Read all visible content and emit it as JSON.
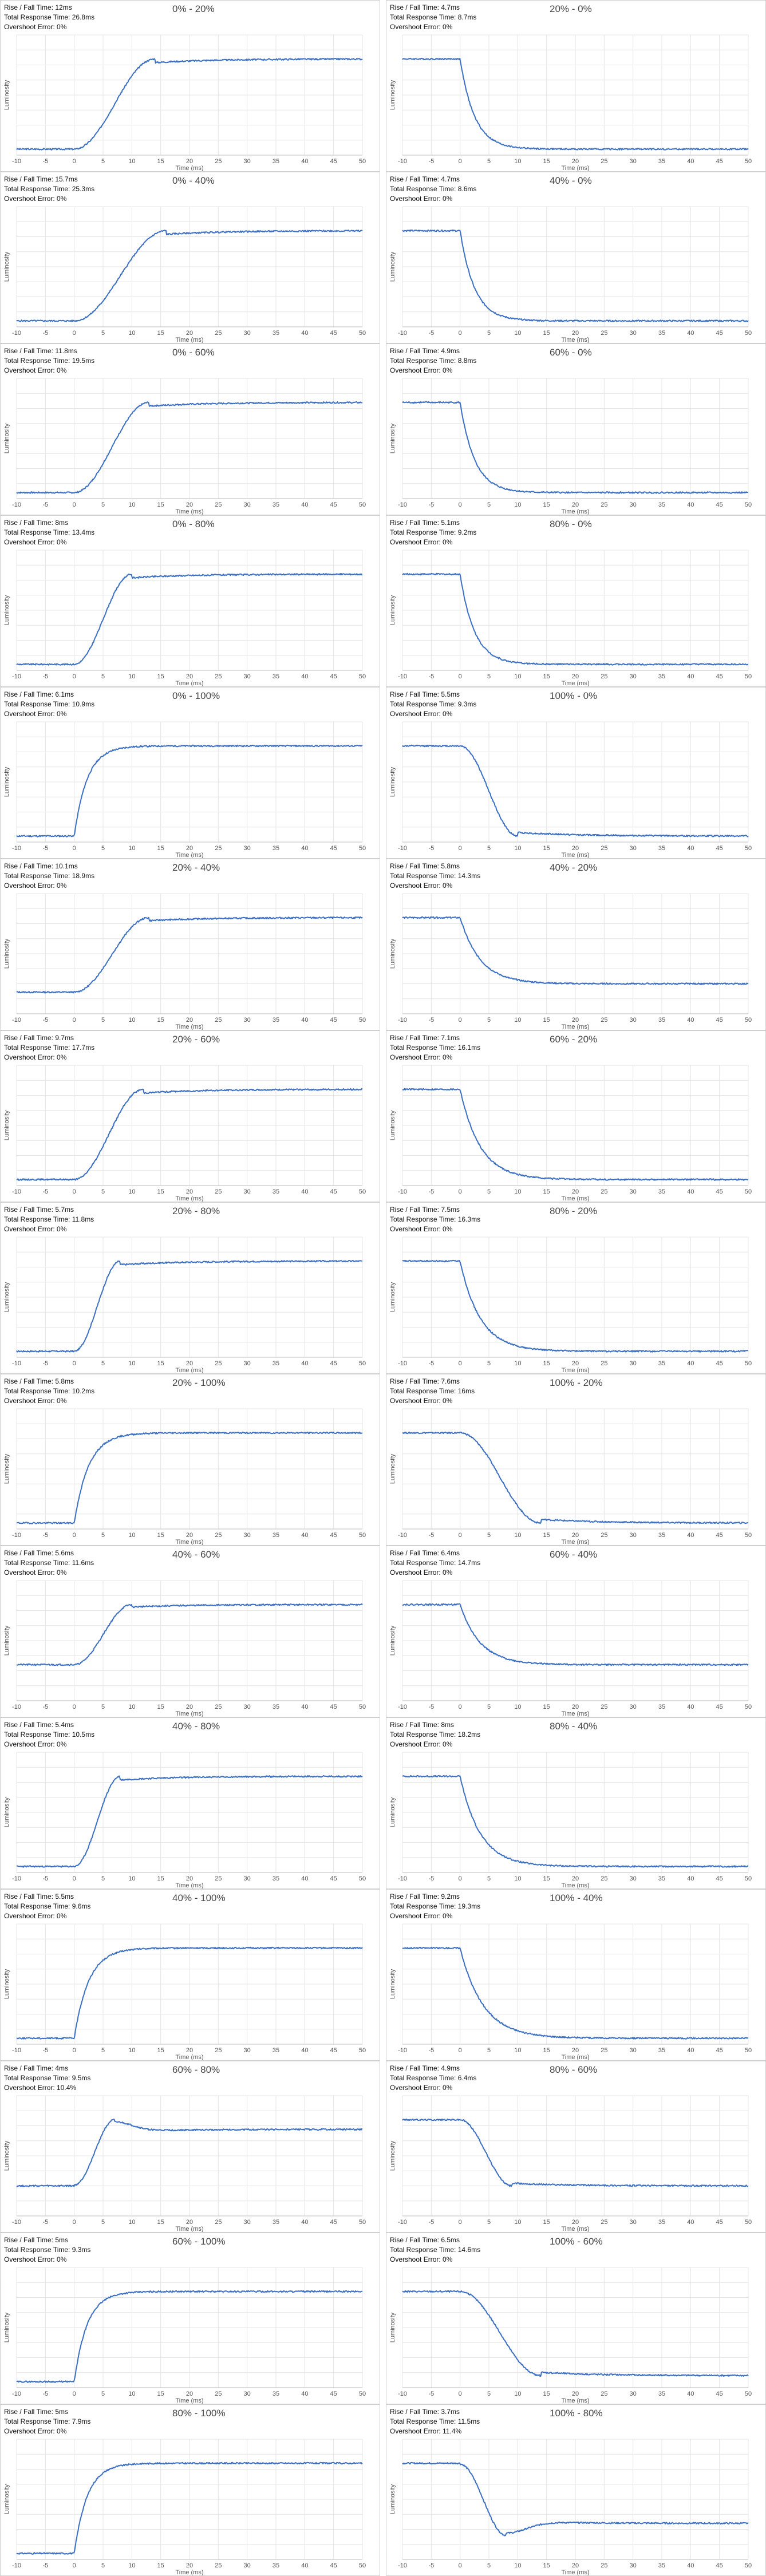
{
  "chart_data": [
    {
      "type": "line",
      "title": "0% - 20%",
      "lines": [
        "Rise / Fall Time: 12ms",
        "Total Response Time: 26.8ms",
        "Overshoot Error: 0%"
      ],
      "xlabel": "Time (ms)",
      "ylabel": "Luminosity",
      "xlim": [
        -10,
        50
      ],
      "ylim": [
        0,
        1
      ],
      "direction": "rise",
      "t_end": 14,
      "shape": "smooth",
      "start": 0.05,
      "end": 0.8,
      "overshoot": 0
    },
    {
      "type": "line",
      "title": "20% - 0%",
      "lines": [
        "Rise / Fall Time: 4.7ms",
        "Total Response Time: 8.7ms",
        "Overshoot Error: 0%"
      ],
      "xlabel": "Time (ms)",
      "ylabel": "Luminosity",
      "xlim": [
        -10,
        50
      ],
      "ylim": [
        0,
        1
      ],
      "direction": "fall",
      "t_end": 10,
      "shape": "exp",
      "start": 0.8,
      "end": 0.05,
      "overshoot": 0
    },
    {
      "type": "line",
      "title": "0% - 40%",
      "lines": [
        "Rise / Fall Time: 15.7ms",
        "Total Response Time: 25.3ms",
        "Overshoot Error: 0%"
      ],
      "xlabel": "Time (ms)",
      "ylabel": "Luminosity",
      "xlim": [
        -10,
        50
      ],
      "ylim": [
        0,
        1
      ],
      "direction": "rise",
      "t_end": 16,
      "shape": "smooth",
      "start": 0.05,
      "end": 0.8,
      "overshoot": 0
    },
    {
      "type": "line",
      "title": "40% - 0%",
      "lines": [
        "Rise / Fall Time: 4.7ms",
        "Total Response Time: 8.6ms",
        "Overshoot Error: 0%"
      ],
      "xlabel": "Time (ms)",
      "ylabel": "Luminosity",
      "xlim": [
        -10,
        50
      ],
      "ylim": [
        0,
        1
      ],
      "direction": "fall",
      "t_end": 10,
      "shape": "exp",
      "start": 0.8,
      "end": 0.05,
      "overshoot": 0
    },
    {
      "type": "line",
      "title": "0% - 60%",
      "lines": [
        "Rise / Fall Time: 11.8ms",
        "Total Response Time: 19.5ms",
        "Overshoot Error: 0%"
      ],
      "xlabel": "Time (ms)",
      "ylabel": "Luminosity",
      "xlim": [
        -10,
        50
      ],
      "ylim": [
        0,
        1
      ],
      "direction": "rise",
      "t_end": 13,
      "shape": "smooth",
      "start": 0.05,
      "end": 0.8,
      "overshoot": 0
    },
    {
      "type": "line",
      "title": "60% - 0%",
      "lines": [
        "Rise / Fall Time: 4.9ms",
        "Total Response Time: 8.8ms",
        "Overshoot Error: 0%"
      ],
      "xlabel": "Time (ms)",
      "ylabel": "Luminosity",
      "xlim": [
        -10,
        50
      ],
      "ylim": [
        0,
        1
      ],
      "direction": "fall",
      "t_end": 10,
      "shape": "exp",
      "start": 0.8,
      "end": 0.05,
      "overshoot": 0
    },
    {
      "type": "line",
      "title": "0% - 80%",
      "lines": [
        "Rise / Fall Time: 8ms",
        "Total Response Time: 13.4ms",
        "Overshoot Error: 0%"
      ],
      "xlabel": "Time (ms)",
      "ylabel": "Luminosity",
      "xlim": [
        -10,
        50
      ],
      "ylim": [
        0,
        1
      ],
      "direction": "rise",
      "t_end": 10,
      "shape": "smooth",
      "start": 0.05,
      "end": 0.8,
      "overshoot": 0
    },
    {
      "type": "line",
      "title": "80% - 0%",
      "lines": [
        "Rise / Fall Time: 5.1ms",
        "Total Response Time: 9.2ms",
        "Overshoot Error: 0%"
      ],
      "xlabel": "Time (ms)",
      "ylabel": "Luminosity",
      "xlim": [
        -10,
        50
      ],
      "ylim": [
        0,
        1
      ],
      "direction": "fall",
      "t_end": 10,
      "shape": "exp",
      "start": 0.8,
      "end": 0.05,
      "overshoot": 0
    },
    {
      "type": "line",
      "title": "0% - 100%",
      "lines": [
        "Rise / Fall Time: 6.1ms",
        "Total Response Time: 10.9ms",
        "Overshoot Error: 0%"
      ],
      "xlabel": "Time (ms)",
      "ylabel": "Luminosity",
      "xlim": [
        -10,
        50
      ],
      "ylim": [
        0,
        1
      ],
      "direction": "rise",
      "t_end": 9,
      "shape": "exp",
      "start": 0.05,
      "end": 0.8,
      "overshoot": 0
    },
    {
      "type": "line",
      "title": "100% - 0%",
      "lines": [
        "Rise / Fall Time: 5.5ms",
        "Total Response Time: 9.3ms",
        "Overshoot Error: 0%"
      ],
      "xlabel": "Time (ms)",
      "ylabel": "Luminosity",
      "xlim": [
        -10,
        50
      ],
      "ylim": [
        0,
        1
      ],
      "direction": "fall",
      "t_end": 10,
      "shape": "smooth",
      "start": 0.8,
      "end": 0.05,
      "overshoot": 0
    },
    {
      "type": "line",
      "title": "20% - 40%",
      "lines": [
        "Rise / Fall Time: 10.1ms",
        "Total Response Time: 18.9ms",
        "Overshoot Error: 0%"
      ],
      "xlabel": "Time (ms)",
      "ylabel": "Luminosity",
      "xlim": [
        -10,
        50
      ],
      "ylim": [
        0,
        1
      ],
      "direction": "rise",
      "t_end": 13,
      "shape": "smooth",
      "start": 0.18,
      "end": 0.8,
      "overshoot": 0
    },
    {
      "type": "line",
      "title": "40% - 20%",
      "lines": [
        "Rise / Fall Time: 5.8ms",
        "Total Response Time: 14.3ms",
        "Overshoot Error: 0%"
      ],
      "xlabel": "Time (ms)",
      "ylabel": "Luminosity",
      "xlim": [
        -10,
        50
      ],
      "ylim": [
        0,
        1
      ],
      "direction": "fall",
      "t_end": 14,
      "shape": "exp",
      "start": 0.8,
      "end": 0.25,
      "overshoot": 0
    },
    {
      "type": "line",
      "title": "20% - 60%",
      "lines": [
        "Rise / Fall Time: 9.7ms",
        "Total Response Time: 17.7ms",
        "Overshoot Error: 0%"
      ],
      "xlabel": "Time (ms)",
      "ylabel": "Luminosity",
      "xlim": [
        -10,
        50
      ],
      "ylim": [
        0,
        1
      ],
      "direction": "rise",
      "t_end": 12,
      "shape": "smooth",
      "start": 0.05,
      "end": 0.8,
      "overshoot": 0
    },
    {
      "type": "line",
      "title": "60% - 20%",
      "lines": [
        "Rise / Fall Time: 7.1ms",
        "Total Response Time: 16.1ms",
        "Overshoot Error: 0%"
      ],
      "xlabel": "Time (ms)",
      "ylabel": "Luminosity",
      "xlim": [
        -10,
        50
      ],
      "ylim": [
        0,
        1
      ],
      "direction": "fall",
      "t_end": 14,
      "shape": "exp",
      "start": 0.8,
      "end": 0.05,
      "overshoot": 0
    },
    {
      "type": "line",
      "title": "20% - 80%",
      "lines": [
        "Rise / Fall Time: 5.7ms",
        "Total Response Time: 11.8ms",
        "Overshoot Error: 0%"
      ],
      "xlabel": "Time (ms)",
      "ylabel": "Luminosity",
      "xlim": [
        -10,
        50
      ],
      "ylim": [
        0,
        1
      ],
      "direction": "rise",
      "t_end": 8,
      "shape": "smooth",
      "start": 0.05,
      "end": 0.8,
      "overshoot": 0
    },
    {
      "type": "line",
      "title": "80% - 20%",
      "lines": [
        "Rise / Fall Time: 7.5ms",
        "Total Response Time: 16.3ms",
        "Overshoot Error: 0%"
      ],
      "xlabel": "Time (ms)",
      "ylabel": "Luminosity",
      "xlim": [
        -10,
        50
      ],
      "ylim": [
        0,
        1
      ],
      "direction": "fall",
      "t_end": 14,
      "shape": "exp",
      "start": 0.8,
      "end": 0.05,
      "overshoot": 0
    },
    {
      "type": "line",
      "title": "20% - 100%",
      "lines": [
        "Rise / Fall Time: 5.8ms",
        "Total Response Time: 10.2ms",
        "Overshoot Error: 0%"
      ],
      "xlabel": "Time (ms)",
      "ylabel": "Luminosity",
      "xlim": [
        -10,
        50
      ],
      "ylim": [
        0,
        1
      ],
      "direction": "rise",
      "t_end": 10,
      "shape": "exp",
      "start": 0.05,
      "end": 0.8,
      "overshoot": 0
    },
    {
      "type": "line",
      "title": "100% - 20%",
      "lines": [
        "Rise / Fall Time: 7.6ms",
        "Total Response Time: 16ms",
        "Overshoot Error: 0%"
      ],
      "xlabel": "Time (ms)",
      "ylabel": "Luminosity",
      "xlim": [
        -10,
        50
      ],
      "ylim": [
        0,
        1
      ],
      "direction": "fall",
      "t_end": 14,
      "shape": "smooth",
      "start": 0.8,
      "end": 0.05,
      "overshoot": 0
    },
    {
      "type": "line",
      "title": "40% - 60%",
      "lines": [
        "Rise / Fall Time: 5.6ms",
        "Total Response Time: 11.6ms",
        "Overshoot Error: 0%"
      ],
      "xlabel": "Time (ms)",
      "ylabel": "Luminosity",
      "xlim": [
        -10,
        50
      ],
      "ylim": [
        0,
        1
      ],
      "direction": "rise",
      "t_end": 10,
      "shape": "smooth",
      "start": 0.3,
      "end": 0.8,
      "overshoot": 0
    },
    {
      "type": "line",
      "title": "60% - 40%",
      "lines": [
        "Rise / Fall Time: 6.4ms",
        "Total Response Time: 14.7ms",
        "Overshoot Error: 0%"
      ],
      "xlabel": "Time (ms)",
      "ylabel": "Luminosity",
      "xlim": [
        -10,
        50
      ],
      "ylim": [
        0,
        1
      ],
      "direction": "fall",
      "t_end": 14,
      "shape": "exp",
      "start": 0.8,
      "end": 0.3,
      "overshoot": 0
    },
    {
      "type": "line",
      "title": "40% - 80%",
      "lines": [
        "Rise / Fall Time: 5.4ms",
        "Total Response Time: 10.5ms",
        "Overshoot Error: 0%"
      ],
      "xlabel": "Time (ms)",
      "ylabel": "Luminosity",
      "xlim": [
        -10,
        50
      ],
      "ylim": [
        0,
        1
      ],
      "direction": "rise",
      "t_end": 8,
      "shape": "smooth",
      "start": 0.05,
      "end": 0.8,
      "overshoot": 0
    },
    {
      "type": "line",
      "title": "80% - 40%",
      "lines": [
        "Rise / Fall Time: 8ms",
        "Total Response Time: 18.2ms",
        "Overshoot Error: 0%"
      ],
      "xlabel": "Time (ms)",
      "ylabel": "Luminosity",
      "xlim": [
        -10,
        50
      ],
      "ylim": [
        0,
        1
      ],
      "direction": "fall",
      "t_end": 14,
      "shape": "exp",
      "start": 0.8,
      "end": 0.05,
      "overshoot": 0
    },
    {
      "type": "line",
      "title": "40% - 100%",
      "lines": [
        "Rise / Fall Time: 5.5ms",
        "Total Response Time: 9.6ms",
        "Overshoot Error: 0%"
      ],
      "xlabel": "Time (ms)",
      "ylabel": "Luminosity",
      "xlim": [
        -10,
        50
      ],
      "ylim": [
        0,
        1
      ],
      "direction": "rise",
      "t_end": 10,
      "shape": "exp",
      "start": 0.05,
      "end": 0.8,
      "overshoot": 0
    },
    {
      "type": "line",
      "title": "100% - 40%",
      "lines": [
        "Rise / Fall Time: 9.2ms",
        "Total Response Time: 19.3ms",
        "Overshoot Error: 0%"
      ],
      "xlabel": "Time (ms)",
      "ylabel": "Luminosity",
      "xlim": [
        -10,
        50
      ],
      "ylim": [
        0,
        1
      ],
      "direction": "fall",
      "t_end": 16,
      "shape": "exp",
      "start": 0.8,
      "end": 0.05,
      "overshoot": 0
    },
    {
      "type": "line",
      "title": "60% - 80%",
      "lines": [
        "Rise / Fall Time: 4ms",
        "Total Response Time: 9.5ms",
        "Overshoot Error: 10.4%"
      ],
      "xlabel": "Time (ms)",
      "ylabel": "Luminosity",
      "xlim": [
        -10,
        50
      ],
      "ylim": [
        0,
        1
      ],
      "direction": "rise",
      "t_end": 7,
      "shape": "smooth",
      "start": 0.25,
      "end": 0.72,
      "overshoot": 0.08
    },
    {
      "type": "line",
      "title": "80% - 60%",
      "lines": [
        "Rise / Fall Time: 4.9ms",
        "Total Response Time: 6.4ms",
        "Overshoot Error: 0%"
      ],
      "xlabel": "Time (ms)",
      "ylabel": "Luminosity",
      "xlim": [
        -10,
        50
      ],
      "ylim": [
        0,
        1
      ],
      "direction": "fall",
      "t_end": 9,
      "shape": "smooth",
      "start": 0.8,
      "end": 0.25,
      "overshoot": 0
    },
    {
      "type": "line",
      "title": "60% - 100%",
      "lines": [
        "Rise / Fall Time: 5ms",
        "Total Response Time: 9.3ms",
        "Overshoot Error: 0%"
      ],
      "xlabel": "Time (ms)",
      "ylabel": "Luminosity",
      "xlim": [
        -10,
        50
      ],
      "ylim": [
        0,
        1
      ],
      "direction": "rise",
      "t_end": 9,
      "shape": "exp",
      "start": 0.05,
      "end": 0.8,
      "overshoot": 0
    },
    {
      "type": "line",
      "title": "100% - 60%",
      "lines": [
        "Rise / Fall Time: 6.5ms",
        "Total Response Time: 14.6ms",
        "Overshoot Error: 0%"
      ],
      "xlabel": "Time (ms)",
      "ylabel": "Luminosity",
      "xlim": [
        -10,
        50
      ],
      "ylim": [
        0,
        1
      ],
      "direction": "fall",
      "t_end": 14,
      "shape": "smooth",
      "start": 0.8,
      "end": 0.1,
      "overshoot": 0
    },
    {
      "type": "line",
      "title": "80% - 100%",
      "lines": [
        "Rise / Fall Time: 5ms",
        "Total Response Time: 7.9ms",
        "Overshoot Error: 0%"
      ],
      "xlabel": "Time (ms)",
      "ylabel": "Luminosity",
      "xlim": [
        -10,
        50
      ],
      "ylim": [
        0,
        1
      ],
      "direction": "rise",
      "t_end": 9,
      "shape": "exp",
      "start": 0.05,
      "end": 0.8,
      "overshoot": 0
    },
    {
      "type": "line",
      "title": "100% - 80%",
      "lines": [
        "Rise / Fall Time: 3.7ms",
        "Total Response Time: 11.5ms",
        "Overshoot Error: 11.4%"
      ],
      "xlabel": "Time (ms)",
      "ylabel": "Luminosity",
      "xlim": [
        -10,
        50
      ],
      "ylim": [
        0,
        1
      ],
      "direction": "fall",
      "t_end": 8,
      "shape": "smooth",
      "start": 0.8,
      "end": 0.3,
      "overshoot": 0.1
    }
  ],
  "colors": {
    "line": "#3a6fc4",
    "grid": "#e4e4e4",
    "axis": "#bdbdbd",
    "text": "#555555"
  }
}
